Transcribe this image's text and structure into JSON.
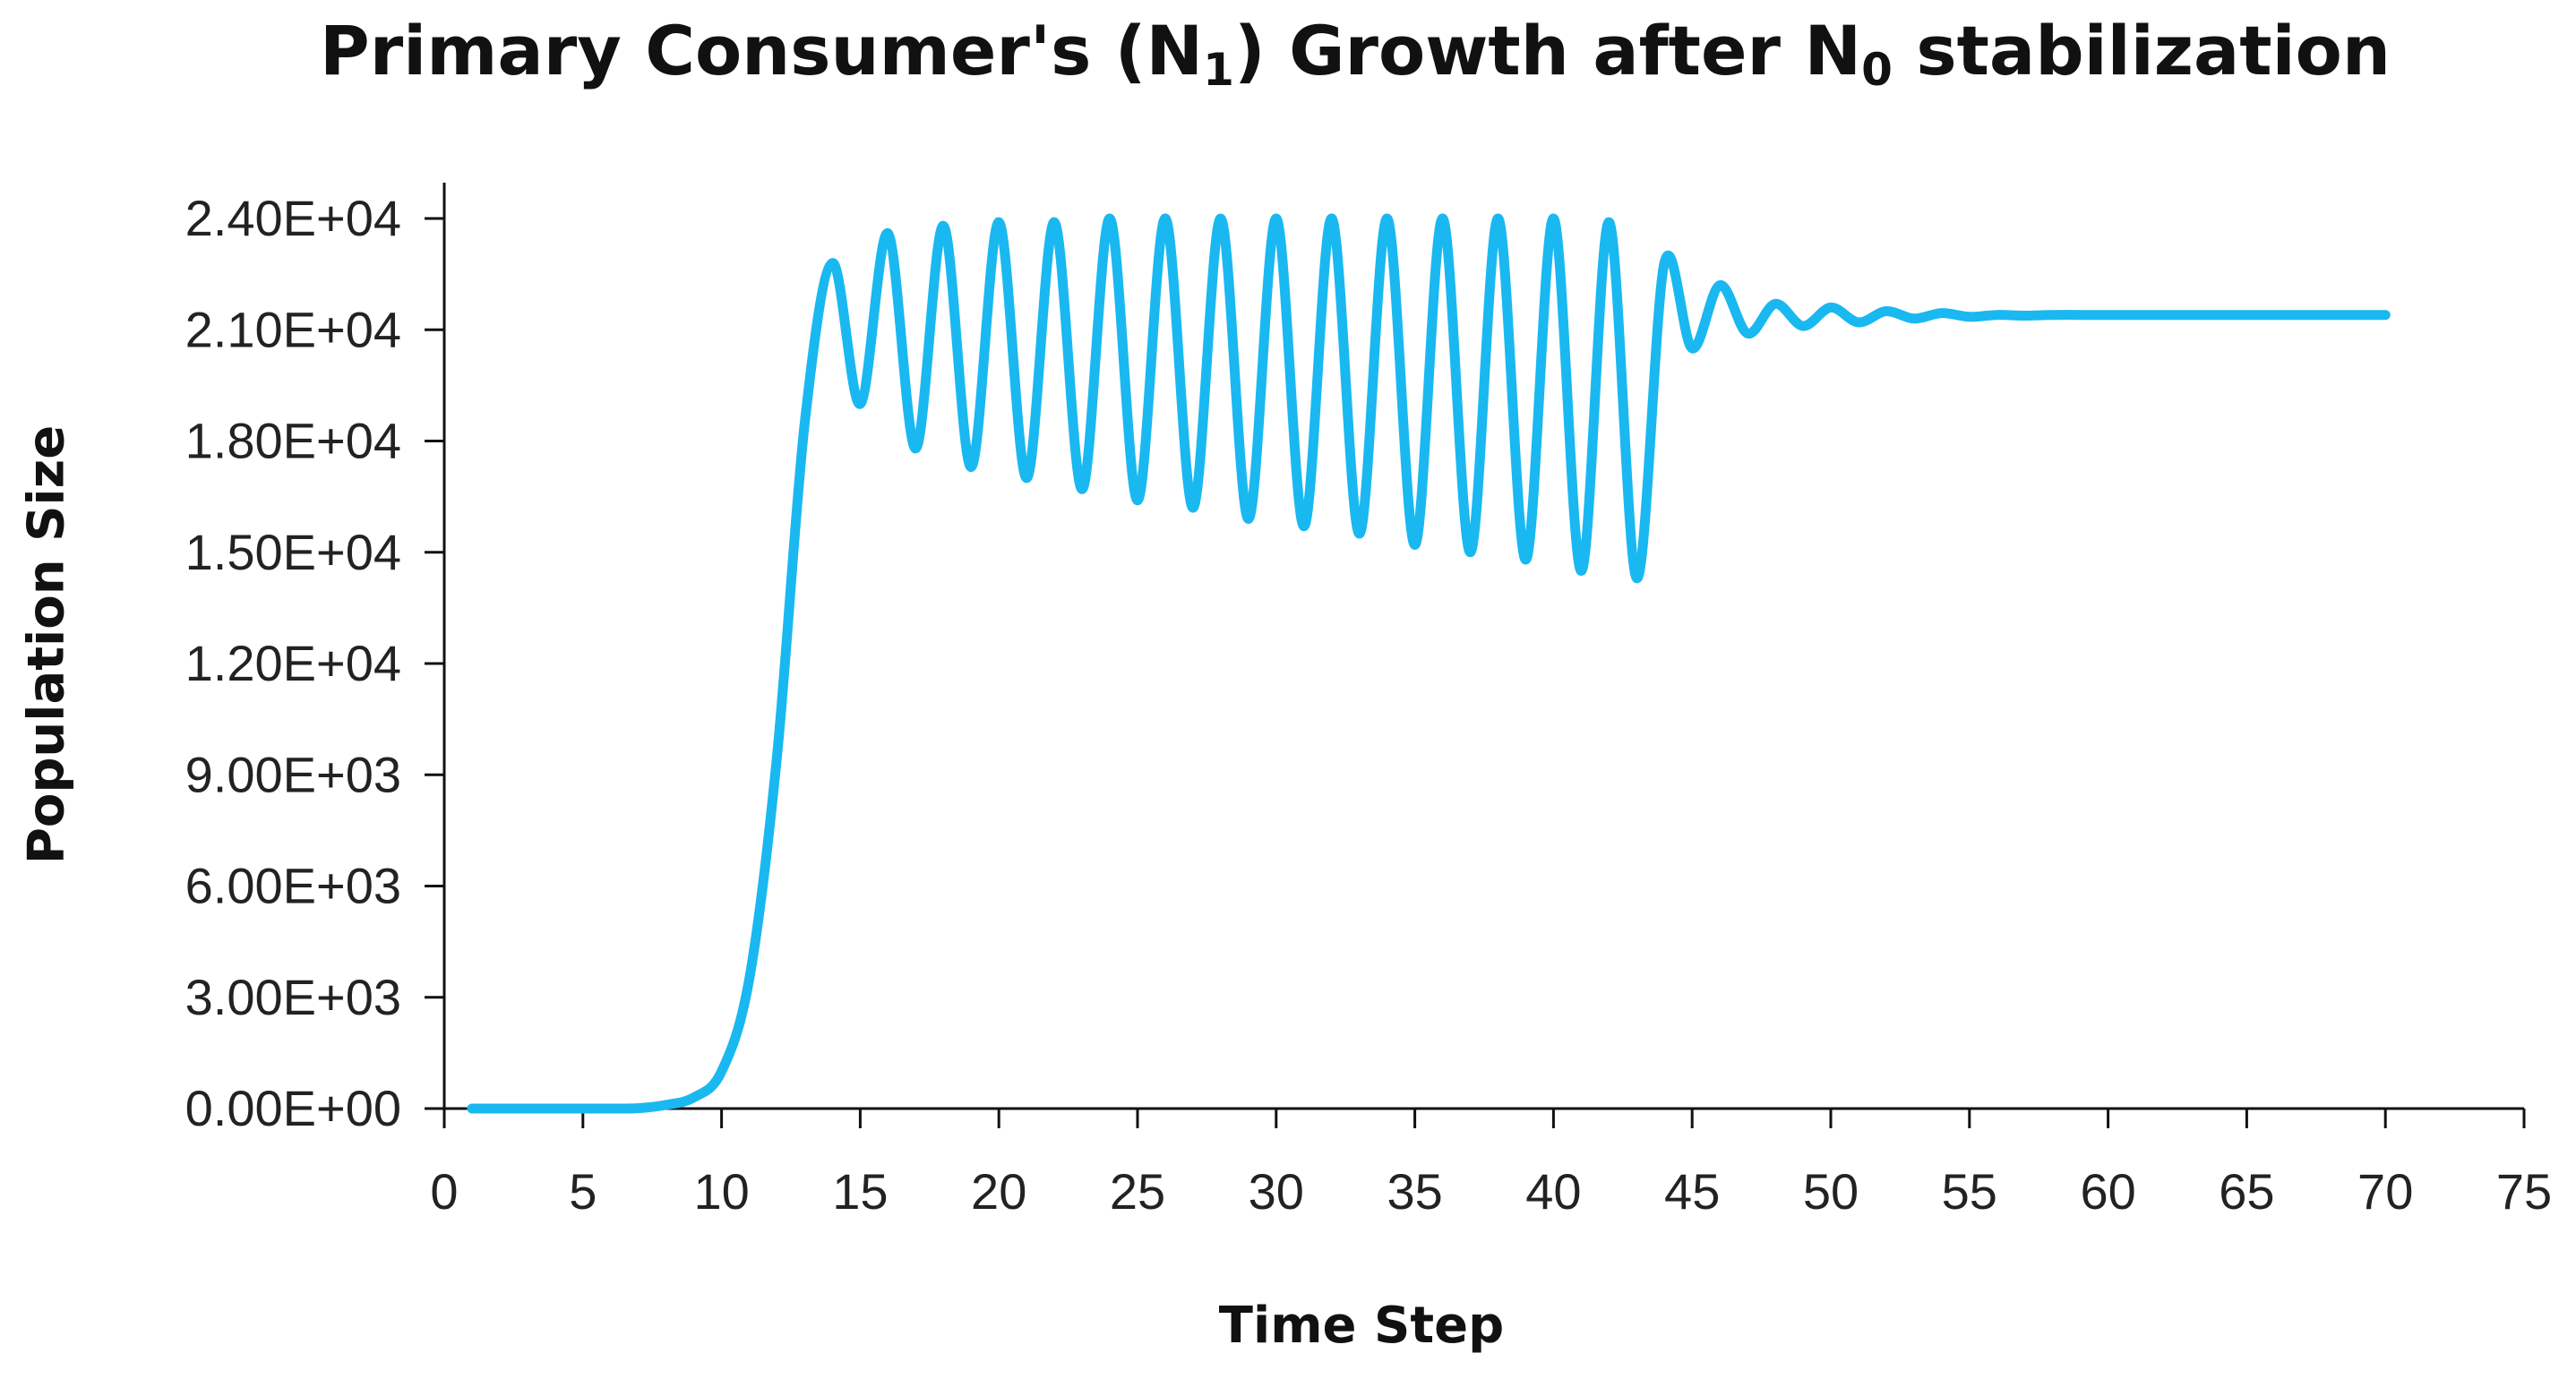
{
  "chart_data": {
    "type": "line",
    "title_parts": {
      "pre": "Primary Consumer's (N",
      "sub1": "1",
      "mid": ") Growth after N",
      "sub2": "0",
      "post": " stabilization"
    },
    "xlabel": "Time Step",
    "ylabel": "Population Size",
    "xlim": [
      0,
      75
    ],
    "ylim": [
      0,
      24000
    ],
    "x_ticks": [
      0,
      5,
      10,
      15,
      20,
      25,
      30,
      35,
      40,
      45,
      50,
      55,
      60,
      65,
      70,
      75
    ],
    "x_tick_labels": [
      "0",
      "5",
      "10",
      "15",
      "20",
      "25",
      "30",
      "35",
      "40",
      "45",
      "50",
      "55",
      "60",
      "65",
      "70",
      "75"
    ],
    "y_ticks": [
      0,
      3000,
      6000,
      9000,
      12000,
      15000,
      18000,
      21000,
      24000
    ],
    "y_tick_labels": [
      "0.00E+00",
      "3.00E+03",
      "6.00E+03",
      "9.00E+03",
      "1.20E+04",
      "1.50E+04",
      "1.80E+04",
      "2.10E+04",
      "2.40E+04"
    ],
    "grid": false,
    "color": "#1AB8F0",
    "series": [
      {
        "name": "N1",
        "x": [
          1,
          2,
          3,
          4,
          5,
          6,
          7,
          8,
          9,
          10,
          11,
          12,
          13,
          14,
          15,
          16,
          17,
          18,
          19,
          20,
          21,
          22,
          23,
          24,
          25,
          26,
          27,
          28,
          29,
          30,
          31,
          32,
          33,
          34,
          35,
          36,
          37,
          38,
          39,
          40,
          41,
          42,
          43,
          44,
          45,
          46,
          47,
          48,
          49,
          50,
          51,
          52,
          53,
          54,
          55,
          56,
          57,
          58,
          59,
          60,
          61,
          62,
          63,
          64,
          65,
          66,
          67,
          68,
          69,
          70
        ],
        "values": [
          0,
          0,
          0,
          0,
          0,
          0,
          10,
          100,
          300,
          1000,
          3500,
          9500,
          18500,
          22800,
          19000,
          23600,
          17800,
          23800,
          17300,
          23900,
          17000,
          23900,
          16700,
          24000,
          16400,
          24000,
          16200,
          24000,
          15900,
          24000,
          15700,
          24000,
          15500,
          24000,
          15200,
          24000,
          15000,
          24000,
          14800,
          24000,
          14500,
          23900,
          14300,
          22800,
          20500,
          22200,
          20900,
          21700,
          21100,
          21600,
          21200,
          21500,
          21300,
          21450,
          21350,
          21400,
          21380,
          21400,
          21400,
          21400,
          21400,
          21400,
          21400,
          21400,
          21400,
          21400,
          21400,
          21400,
          21400,
          21400
        ]
      }
    ]
  }
}
